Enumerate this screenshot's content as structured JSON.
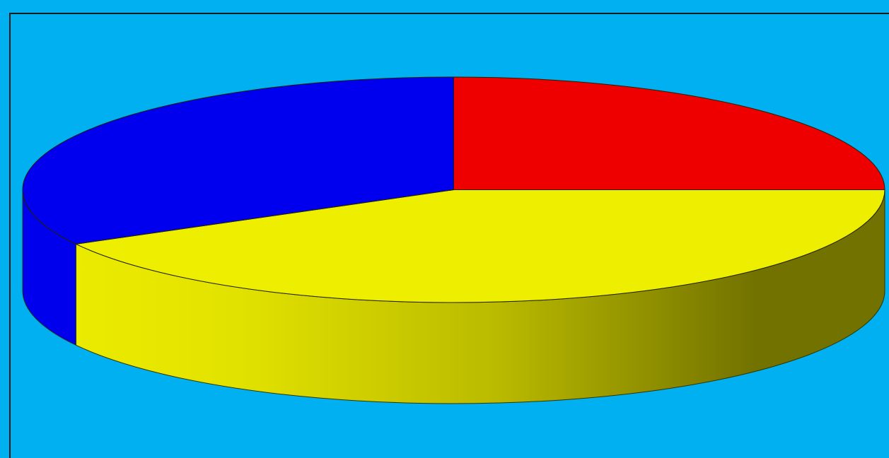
{
  "chart_data": {
    "type": "pie",
    "style": "3d",
    "title": "",
    "series": [
      {
        "values": [
          25,
          42,
          33
        ],
        "colors": [
          "#ee0000",
          "#eeee00",
          "#0000ee"
        ]
      }
    ],
    "start_angle": "12 o'clock",
    "direction": "clockwise",
    "legend": "none",
    "background_color": "#00b0f0"
  }
}
